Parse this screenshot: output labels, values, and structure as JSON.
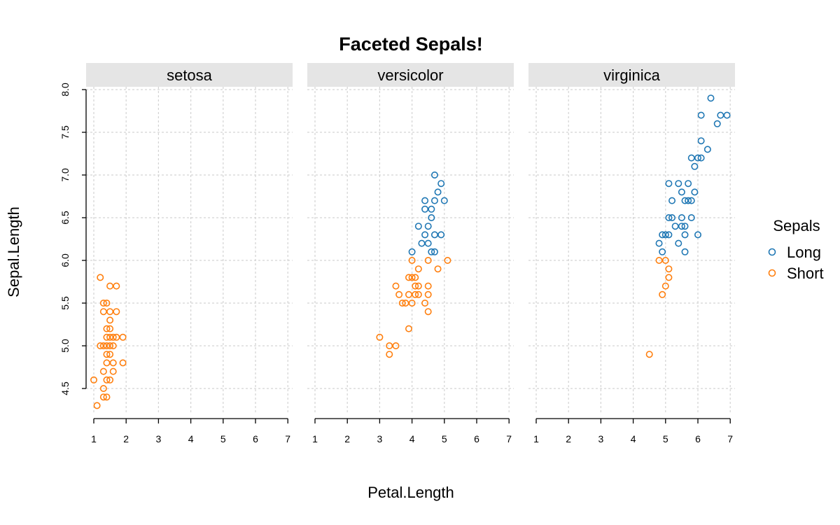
{
  "colors": {
    "Long": "#1f77b4",
    "Short": "#ff7f0e"
  },
  "chart_data": {
    "type": "scatter",
    "title": "Faceted Sepals!",
    "xlabel": "Petal.Length",
    "ylabel": "Sepal.Length",
    "xlim": [
      1,
      7
    ],
    "ylim": [
      4.3,
      8.0
    ],
    "x_ticks": [
      1,
      2,
      3,
      4,
      5,
      6,
      7
    ],
    "y_ticks": [
      4.5,
      5.0,
      5.5,
      6.0,
      6.5,
      7.0,
      7.5,
      8.0
    ],
    "x_tick_labels": [
      "1",
      "2",
      "3",
      "4",
      "5",
      "6",
      "7"
    ],
    "y_tick_labels": [
      "4.5",
      "5.0",
      "5.5",
      "6.0",
      "6.5",
      "7.0",
      "7.5",
      "8.0"
    ],
    "grid": true,
    "legend": {
      "title": "Sepals",
      "position": "right",
      "entries": [
        {
          "name": "Long",
          "color": "#1f77b4"
        },
        {
          "name": "Short",
          "color": "#ff7f0e"
        }
      ]
    },
    "facets": [
      {
        "name": "setosa",
        "series": [
          {
            "name": "Long",
            "points": []
          },
          {
            "name": "Short",
            "points": [
              [
                1.0,
                4.6
              ],
              [
                1.1,
                4.3
              ],
              [
                1.2,
                5.8
              ],
              [
                1.2,
                5.0
              ],
              [
                1.3,
                5.5
              ],
              [
                1.3,
                5.4
              ],
              [
                1.3,
                5.0
              ],
              [
                1.3,
                4.7
              ],
              [
                1.3,
                4.5
              ],
              [
                1.3,
                4.4
              ],
              [
                1.4,
                5.5
              ],
              [
                1.4,
                5.2
              ],
              [
                1.4,
                5.1
              ],
              [
                1.4,
                5.0
              ],
              [
                1.4,
                4.9
              ],
              [
                1.4,
                4.8
              ],
              [
                1.4,
                4.6
              ],
              [
                1.4,
                4.4
              ],
              [
                1.5,
                5.7
              ],
              [
                1.5,
                5.4
              ],
              [
                1.5,
                5.3
              ],
              [
                1.5,
                5.2
              ],
              [
                1.5,
                5.1
              ],
              [
                1.5,
                5.0
              ],
              [
                1.5,
                4.9
              ],
              [
                1.5,
                4.6
              ],
              [
                1.6,
                5.1
              ],
              [
                1.6,
                5.0
              ],
              [
                1.6,
                4.8
              ],
              [
                1.6,
                4.7
              ],
              [
                1.7,
                5.7
              ],
              [
                1.7,
                5.4
              ],
              [
                1.7,
                5.1
              ],
              [
                1.9,
                5.1
              ],
              [
                1.9,
                4.8
              ]
            ]
          }
        ]
      },
      {
        "name": "versicolor",
        "series": [
          {
            "name": "Long",
            "points": [
              [
                4.0,
                6.1
              ],
              [
                4.2,
                6.4
              ],
              [
                4.3,
                6.2
              ],
              [
                4.4,
                6.7
              ],
              [
                4.4,
                6.6
              ],
              [
                4.4,
                6.3
              ],
              [
                4.5,
                6.4
              ],
              [
                4.5,
                6.2
              ],
              [
                4.6,
                6.6
              ],
              [
                4.6,
                6.5
              ],
              [
                4.6,
                6.1
              ],
              [
                4.7,
                7.0
              ],
              [
                4.7,
                6.7
              ],
              [
                4.7,
                6.3
              ],
              [
                4.7,
                6.1
              ],
              [
                4.8,
                6.8
              ],
              [
                4.9,
                6.9
              ],
              [
                4.9,
                6.3
              ],
              [
                5.0,
                6.7
              ]
            ]
          },
          {
            "name": "Short",
            "points": [
              [
                3.0,
                5.1
              ],
              [
                3.3,
                5.0
              ],
              [
                3.3,
                4.9
              ],
              [
                3.5,
                5.7
              ],
              [
                3.5,
                5.0
              ],
              [
                3.6,
                5.6
              ],
              [
                3.7,
                5.5
              ],
              [
                3.8,
                5.5
              ],
              [
                3.9,
                5.8
              ],
              [
                3.9,
                5.6
              ],
              [
                3.9,
                5.2
              ],
              [
                4.0,
                6.0
              ],
              [
                4.0,
                5.8
              ],
              [
                4.0,
                5.5
              ],
              [
                4.1,
                5.8
              ],
              [
                4.1,
                5.7
              ],
              [
                4.1,
                5.6
              ],
              [
                4.2,
                5.9
              ],
              [
                4.2,
                5.7
              ],
              [
                4.2,
                5.6
              ],
              [
                4.4,
                5.5
              ],
              [
                4.5,
                6.0
              ],
              [
                4.5,
                5.7
              ],
              [
                4.5,
                5.6
              ],
              [
                4.5,
                5.4
              ],
              [
                4.8,
                5.9
              ],
              [
                5.1,
                6.0
              ]
            ]
          }
        ]
      },
      {
        "name": "virginica",
        "series": [
          {
            "name": "Long",
            "points": [
              [
                4.8,
                6.2
              ],
              [
                4.9,
                6.3
              ],
              [
                4.9,
                6.1
              ],
              [
                5.0,
                6.3
              ],
              [
                5.1,
                6.9
              ],
              [
                5.1,
                6.5
              ],
              [
                5.1,
                6.3
              ],
              [
                5.2,
                6.7
              ],
              [
                5.2,
                6.5
              ],
              [
                5.3,
                6.4
              ],
              [
                5.4,
                6.9
              ],
              [
                5.4,
                6.2
              ],
              [
                5.5,
                6.8
              ],
              [
                5.5,
                6.5
              ],
              [
                5.5,
                6.4
              ],
              [
                5.6,
                6.7
              ],
              [
                5.6,
                6.4
              ],
              [
                5.6,
                6.3
              ],
              [
                5.6,
                6.1
              ],
              [
                5.7,
                6.9
              ],
              [
                5.7,
                6.7
              ],
              [
                5.8,
                7.2
              ],
              [
                5.8,
                6.7
              ],
              [
                5.8,
                6.5
              ],
              [
                5.9,
                7.1
              ],
              [
                5.9,
                6.8
              ],
              [
                6.0,
                7.2
              ],
              [
                6.0,
                6.3
              ],
              [
                6.1,
                7.7
              ],
              [
                6.1,
                7.4
              ],
              [
                6.1,
                7.2
              ],
              [
                6.3,
                7.3
              ],
              [
                6.4,
                7.9
              ],
              [
                6.6,
                7.6
              ],
              [
                6.7,
                7.7
              ],
              [
                6.9,
                7.7
              ]
            ]
          },
          {
            "name": "Short",
            "points": [
              [
                4.5,
                4.9
              ],
              [
                4.8,
                6.0
              ],
              [
                4.9,
                5.6
              ],
              [
                5.0,
                6.0
              ],
              [
                5.0,
                5.7
              ],
              [
                5.1,
                5.9
              ],
              [
                5.1,
                5.8
              ]
            ]
          }
        ]
      }
    ]
  }
}
